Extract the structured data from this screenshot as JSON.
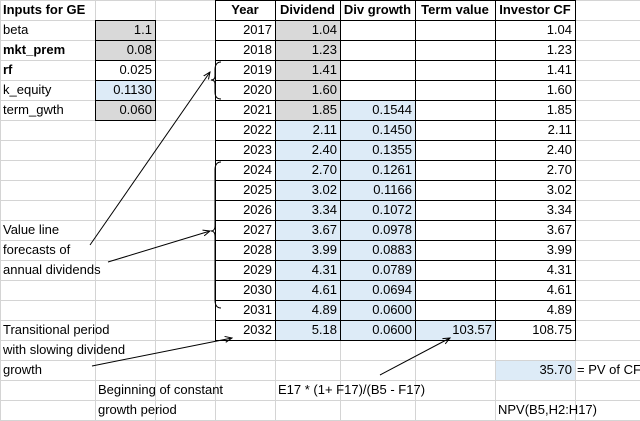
{
  "inputs": {
    "title": "Inputs for GE",
    "rows": [
      [
        "beta",
        "1.1"
      ],
      [
        "mkt_prem",
        "0.08"
      ],
      [
        "rf",
        "0.025"
      ],
      [
        "k_equity",
        "0.1130"
      ],
      [
        "term_gwth",
        "0.060"
      ]
    ]
  },
  "table": {
    "headers": [
      "Year",
      "Dividend",
      "Div growth",
      "Term value",
      "Investor CF"
    ],
    "rows": [
      {
        "year": "2017",
        "dividend": "1.04",
        "investor_cf": "1.04"
      },
      {
        "year": "2018",
        "dividend": "1.23",
        "investor_cf": "1.23"
      },
      {
        "year": "2019",
        "dividend": "1.41",
        "investor_cf": "1.41"
      },
      {
        "year": "2020",
        "dividend": "1.60",
        "investor_cf": "1.60"
      },
      {
        "year": "2021",
        "dividend": "1.85",
        "div_growth": "0.1544",
        "investor_cf": "1.85"
      },
      {
        "year": "2022",
        "dividend": "2.11",
        "div_growth": "0.1450",
        "investor_cf": "2.11"
      },
      {
        "year": "2023",
        "dividend": "2.40",
        "div_growth": "0.1355",
        "investor_cf": "2.40"
      },
      {
        "year": "2024",
        "dividend": "2.70",
        "div_growth": "0.1261",
        "investor_cf": "2.70"
      },
      {
        "year": "2025",
        "dividend": "3.02",
        "div_growth": "0.1166",
        "investor_cf": "3.02"
      },
      {
        "year": "2026",
        "dividend": "3.34",
        "div_growth": "0.1072",
        "investor_cf": "3.34"
      },
      {
        "year": "2027",
        "dividend": "3.67",
        "div_growth": "0.0978",
        "investor_cf": "3.67"
      },
      {
        "year": "2028",
        "dividend": "3.99",
        "div_growth": "0.0883",
        "investor_cf": "3.99"
      },
      {
        "year": "2029",
        "dividend": "4.31",
        "div_growth": "0.0789",
        "investor_cf": "4.31"
      },
      {
        "year": "2030",
        "dividend": "4.61",
        "div_growth": "0.0694",
        "investor_cf": "4.61"
      },
      {
        "year": "2031",
        "dividend": "4.89",
        "div_growth": "0.0600",
        "investor_cf": "4.89"
      },
      {
        "year": "2032",
        "dividend": "5.18",
        "div_growth": "0.0600",
        "term_value": "103.57",
        "investor_cf": "108.75"
      }
    ]
  },
  "pv": {
    "value": "35.70",
    "label": "= PV of CF"
  },
  "annotations": {
    "forecast": [
      "Value line",
      "forecasts of",
      "annual dividends"
    ],
    "transitional": [
      "Transitional period",
      "with slowing dividend",
      "growth"
    ],
    "constant": [
      "Beginning of constant",
      "growth period"
    ],
    "term_formula": "E17 * (1+ F17)/(B5 - F17)",
    "npv_formula": "NPV(B5,H2:H17)"
  }
}
